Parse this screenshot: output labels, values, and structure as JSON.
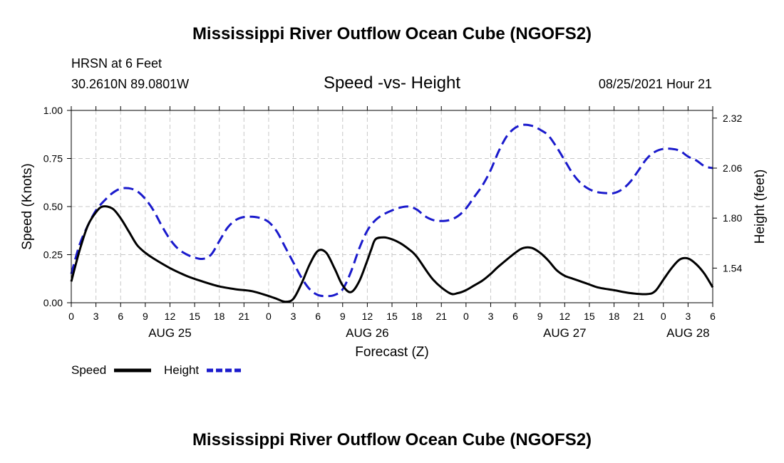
{
  "header": {
    "title": "Mississippi River Outflow Ocean Cube (NGOFS2)",
    "station": "HRSN at 6 Feet",
    "coords": "30.2610N  89.0801W",
    "subtitle": "Speed -vs- Height",
    "datetime": "08/25/2021 Hour 21"
  },
  "footer": {
    "title": "Mississippi River Outflow Ocean Cube (NGOFS2)"
  },
  "legend": {
    "items": [
      {
        "label": "Speed",
        "color": "#000000",
        "style": "solid"
      },
      {
        "label": "Height",
        "color": "#1a1acc",
        "style": "dashed"
      }
    ]
  },
  "chart_data": {
    "type": "line",
    "title": "Speed -vs- Height",
    "xlabel": "Forecast (Z)",
    "ylabel": "Speed (Knots)",
    "y2label": "Height (feet)",
    "xlim": [
      0,
      78
    ],
    "ylim": [
      0,
      1.0
    ],
    "y2lim": [
      1.36,
      2.36
    ],
    "x_tick_values": [
      0,
      3,
      6,
      9,
      12,
      15,
      18,
      21,
      24,
      27,
      30,
      33,
      36,
      39,
      42,
      45,
      48,
      51,
      54,
      57,
      60,
      63,
      66,
      69,
      72,
      75,
      78
    ],
    "x_tick_labels": [
      "0",
      "3",
      "6",
      "9",
      "12",
      "15",
      "18",
      "21",
      "0",
      "3",
      "6",
      "9",
      "12",
      "15",
      "18",
      "21",
      "0",
      "3",
      "6",
      "9",
      "12",
      "15",
      "18",
      "21",
      "0",
      "3",
      "6"
    ],
    "date_labels": [
      {
        "x": 12,
        "label": "AUG 25"
      },
      {
        "x": 36,
        "label": "AUG 26"
      },
      {
        "x": 60,
        "label": "AUG 27"
      },
      {
        "x": 75,
        "label": "AUG 28"
      }
    ],
    "y_ticks": [
      {
        "value": 0.0,
        "label": "0.00"
      },
      {
        "value": 0.25,
        "label": "0.25"
      },
      {
        "value": 0.5,
        "label": "0.50"
      },
      {
        "value": 0.75,
        "label": "0.75"
      },
      {
        "value": 1.0,
        "label": "1.00"
      }
    ],
    "y2_ticks": [
      {
        "value": 1.54,
        "label": "1.54"
      },
      {
        "value": 1.8,
        "label": "1.80"
      },
      {
        "value": 2.06,
        "label": "2.06"
      },
      {
        "value": 2.32,
        "label": "2.32"
      }
    ],
    "grid": true,
    "series": [
      {
        "name": "Speed",
        "axis": "left",
        "color": "#000000",
        "dashed": false,
        "x": [
          0,
          1,
          2,
          3,
          3.8,
          5,
          6,
          7,
          8,
          9,
          10,
          12,
          14,
          16,
          18,
          20,
          22,
          24,
          25,
          26,
          27,
          28,
          29,
          30,
          31,
          32,
          33,
          34,
          35,
          36,
          36.5,
          37,
          38,
          39,
          40,
          41,
          42,
          44,
          46,
          47,
          48,
          49,
          50,
          51,
          52,
          54,
          55,
          56,
          57,
          58,
          59,
          60,
          61,
          62,
          63,
          64,
          66,
          68,
          70,
          71,
          72,
          73,
          74,
          75,
          76,
          77,
          78
        ],
        "y": [
          0.11,
          0.27,
          0.4,
          0.47,
          0.5,
          0.49,
          0.44,
          0.37,
          0.3,
          0.26,
          0.23,
          0.18,
          0.14,
          0.11,
          0.085,
          0.07,
          0.06,
          0.035,
          0.02,
          0.005,
          0.02,
          0.1,
          0.2,
          0.27,
          0.26,
          0.18,
          0.09,
          0.055,
          0.11,
          0.22,
          0.28,
          0.33,
          0.34,
          0.33,
          0.31,
          0.28,
          0.24,
          0.12,
          0.05,
          0.05,
          0.065,
          0.09,
          0.115,
          0.15,
          0.19,
          0.26,
          0.285,
          0.285,
          0.26,
          0.22,
          0.17,
          0.14,
          0.125,
          0.11,
          0.095,
          0.08,
          0.065,
          0.05,
          0.045,
          0.06,
          0.12,
          0.18,
          0.225,
          0.23,
          0.2,
          0.15,
          0.08
        ]
      },
      {
        "name": "Height",
        "axis": "right",
        "color": "#1a1acc",
        "dashed": true,
        "x": [
          0,
          1,
          2,
          3,
          4,
          5,
          6,
          7,
          8,
          9,
          10,
          11,
          12,
          13,
          14,
          15,
          16,
          17,
          18,
          19,
          20,
          21,
          22,
          23,
          24,
          25,
          26,
          27,
          28,
          29,
          30,
          31,
          32,
          33,
          34,
          35,
          36,
          37,
          38,
          39,
          40,
          41,
          42,
          43,
          44,
          45,
          46,
          47,
          48,
          49,
          50,
          51,
          52,
          53,
          54,
          55,
          56,
          57,
          58,
          59,
          60,
          61,
          62,
          63,
          64,
          65,
          66,
          67,
          68,
          69,
          70,
          71,
          72,
          73,
          74,
          75,
          76,
          77,
          78
        ],
        "y": [
          1.51,
          1.66,
          1.76,
          1.84,
          1.89,
          1.93,
          1.953,
          1.955,
          1.94,
          1.9,
          1.84,
          1.76,
          1.69,
          1.64,
          1.612,
          1.595,
          1.588,
          1.61,
          1.68,
          1.75,
          1.79,
          1.806,
          1.807,
          1.8,
          1.78,
          1.73,
          1.65,
          1.57,
          1.49,
          1.43,
          1.4,
          1.395,
          1.4,
          1.43,
          1.52,
          1.64,
          1.735,
          1.79,
          1.82,
          1.84,
          1.855,
          1.86,
          1.845,
          1.81,
          1.79,
          1.785,
          1.79,
          1.81,
          1.85,
          1.91,
          1.97,
          2.05,
          2.15,
          2.228,
          2.27,
          2.285,
          2.28,
          2.26,
          2.23,
          2.17,
          2.1,
          2.03,
          1.98,
          1.95,
          1.935,
          1.93,
          1.93,
          1.95,
          1.99,
          2.05,
          2.11,
          2.145,
          2.16,
          2.16,
          2.15,
          2.12,
          2.1,
          2.07,
          2.06
        ]
      }
    ]
  }
}
